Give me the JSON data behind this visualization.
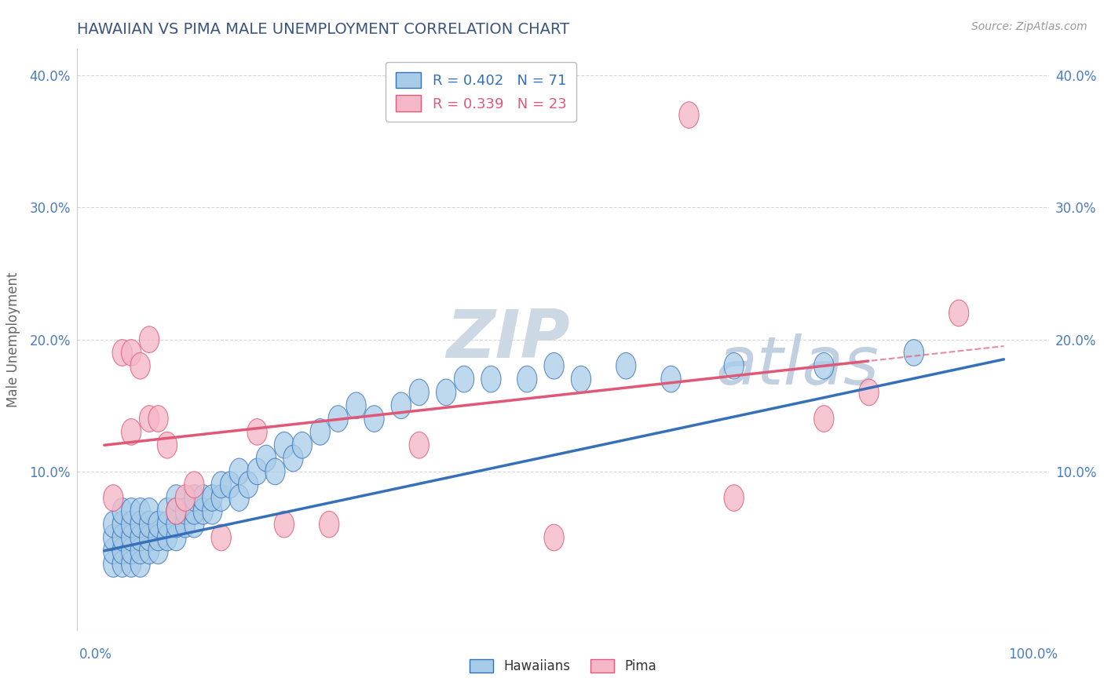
{
  "title": "HAWAIIAN VS PIMA MALE UNEMPLOYMENT CORRELATION CHART",
  "source_text": "Source: ZipAtlas.com",
  "ylabel": "Male Unemployment",
  "legend_hawaiians": "Hawaiians",
  "legend_pima": "Pima",
  "r_hawaiians": 0.402,
  "n_hawaiians": 71,
  "r_pima": 0.339,
  "n_pima": 23,
  "color_hawaiians": "#a8cce8",
  "color_pima": "#f5b8c8",
  "color_line_hawaiians": "#3570b8",
  "color_line_pima": "#e05878",
  "title_color": "#3a5580",
  "axis_label_color": "#666666",
  "tick_color": "#4a7cc0",
  "watermark_zip_color": "#c5d5e5",
  "watermark_atlas_color": "#b8cce0",
  "grid_color": "#cccccc",
  "background_color": "#ffffff",
  "hawaiians_x": [
    1,
    1,
    1,
    1,
    2,
    2,
    2,
    2,
    2,
    3,
    3,
    3,
    3,
    3,
    4,
    4,
    4,
    4,
    4,
    5,
    5,
    5,
    5,
    6,
    6,
    6,
    7,
    7,
    7,
    8,
    8,
    8,
    8,
    9,
    9,
    10,
    10,
    10,
    11,
    11,
    12,
    12,
    13,
    13,
    14,
    15,
    15,
    16,
    17,
    18,
    19,
    20,
    21,
    22,
    24,
    26,
    28,
    30,
    33,
    35,
    38,
    40,
    43,
    47,
    50,
    53,
    58,
    63,
    70,
    80,
    90
  ],
  "hawaiians_y": [
    3,
    4,
    5,
    6,
    3,
    4,
    5,
    6,
    7,
    3,
    4,
    5,
    6,
    7,
    3,
    4,
    5,
    6,
    7,
    4,
    5,
    6,
    7,
    4,
    5,
    6,
    5,
    6,
    7,
    5,
    6,
    7,
    8,
    6,
    7,
    6,
    7,
    8,
    7,
    8,
    7,
    8,
    8,
    9,
    9,
    8,
    10,
    9,
    10,
    11,
    10,
    12,
    11,
    12,
    13,
    14,
    15,
    14,
    15,
    16,
    16,
    17,
    17,
    17,
    18,
    17,
    18,
    17,
    18,
    18,
    19
  ],
  "pima_x": [
    1,
    2,
    3,
    3,
    4,
    5,
    5,
    6,
    7,
    8,
    9,
    10,
    13,
    17,
    20,
    25,
    35,
    50,
    65,
    70,
    80,
    85,
    95
  ],
  "pima_y": [
    8,
    19,
    13,
    19,
    18,
    14,
    20,
    14,
    12,
    7,
    8,
    9,
    5,
    13,
    6,
    6,
    12,
    5,
    37,
    8,
    14,
    16,
    22
  ],
  "blue_line_x0": 0,
  "blue_line_y0": 4.0,
  "blue_line_x1": 100,
  "blue_line_y1": 18.5,
  "pink_line_x0": 0,
  "pink_line_y0": 12.0,
  "pink_line_x1": 100,
  "pink_line_y1": 19.5,
  "xlim": [
    -3,
    105
  ],
  "ylim": [
    -2,
    42
  ],
  "yticks": [
    10,
    20,
    30,
    40
  ],
  "ytick_labels": [
    "10.0%",
    "20.0%",
    "30.0%",
    "40.0%"
  ]
}
